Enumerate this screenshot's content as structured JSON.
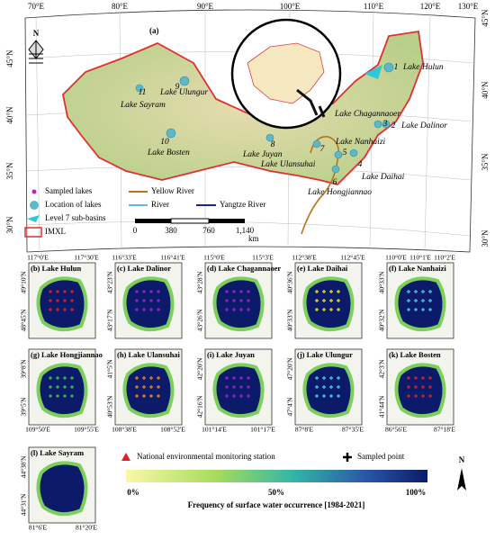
{
  "main_map": {
    "panel_label": "(a)",
    "lon_labels": [
      "70°E",
      "80°E",
      "90°E",
      "100°E",
      "110°E",
      "120°E",
      "130°E"
    ],
    "lat_labels_left": [
      "45°N",
      "40°N",
      "35°N",
      "30°N"
    ],
    "lat_labels_right": [
      "45°N",
      "40°N",
      "35°N",
      "30°N"
    ],
    "lakes": [
      {
        "number": "1",
        "name": "Lake Hulun"
      },
      {
        "number": "2",
        "name": "Lake Dalinor"
      },
      {
        "number": "3",
        "name": "Lake Chagannaoer"
      },
      {
        "number": "4",
        "name": "Lake Daihai"
      },
      {
        "number": "5",
        "name": "Lake Nanhaizi"
      },
      {
        "number": "6",
        "name": "Lake Hongjiannao"
      },
      {
        "number": "7",
        "name": "Lake Ulansuhai"
      },
      {
        "number": "8",
        "name": "Lake Juyan"
      },
      {
        "number": "9",
        "name": "Lake Ulungur"
      },
      {
        "number": "10",
        "name": "Lake Bosten"
      },
      {
        "number": "11",
        "name": "Lake Sayram"
      }
    ],
    "legend": [
      "Sampled lakes",
      "Location of lakes",
      "Level 7 sub-basins",
      "IMXL",
      "Yellow River",
      "River",
      "Yangtze River"
    ],
    "scale": {
      "ticks": [
        "0",
        "380",
        "760",
        "1,140"
      ],
      "unit": "km"
    }
  },
  "panels": [
    {
      "title": "(b) Lake Hulun",
      "x_labels": [
        "117°0'E",
        "117°30'E"
      ],
      "y_labels": [
        "49°10'N",
        "48°45'N"
      ]
    },
    {
      "title": "(c) Lake Dalinor",
      "x_labels": [
        "116°33'E",
        "116°41'E"
      ],
      "y_labels": [
        "43°23'N",
        "43°17'N"
      ]
    },
    {
      "title": "(d) Lake Chagannaoer",
      "x_labels": [
        "115°0'E",
        "115°3'E"
      ],
      "y_labels": [
        "43°28'N",
        "43°26'N"
      ]
    },
    {
      "title": "(e) Lake Daihai",
      "x_labels": [
        "112°38'E",
        "112°45'E"
      ],
      "y_labels": [
        "40°36'N",
        "40°33'N"
      ]
    },
    {
      "title": "(f) Lake Nanhaizi",
      "x_labels": [
        "110°0'E",
        "110°1'E",
        "110°2'E"
      ],
      "y_labels": [
        "40°33'N",
        "40°32'N"
      ]
    },
    {
      "title": "(g) Lake Hongjiannao",
      "x_labels": [
        "109°50'E",
        "109°55'E"
      ],
      "y_labels": [
        "39°8'N",
        "39°5'N"
      ]
    },
    {
      "title": "(h) Lake Ulansuhai",
      "x_labels": [
        "108°38'E",
        "108°52'E"
      ],
      "y_labels": [
        "41°5'N",
        "40°53'N"
      ]
    },
    {
      "title": "(i) Lake Juyan",
      "x_labels": [
        "101°14'E",
        "101°17'E"
      ],
      "y_labels": [
        "42°20'N",
        "42°16'N"
      ]
    },
    {
      "title": "(j) Lake Ulungur",
      "x_labels": [
        "87°8'E",
        "87°35'E"
      ],
      "y_labels": [
        "47°20'N",
        "47°4'N"
      ]
    },
    {
      "title": "(k) Lake Bosten",
      "x_labels": [
        "86°56'E",
        "87°18'E"
      ],
      "y_labels": [
        "42°3'N",
        "41°44'N"
      ]
    },
    {
      "title": "(l) Lake Sayram",
      "x_labels": [
        "81°6'E",
        "81°20'E"
      ],
      "y_labels": [
        "44°38'N",
        "44°31'N"
      ]
    }
  ],
  "bottom_legend": {
    "station": "National environmental monitoring station",
    "sampled": "Sampled point",
    "north": "N",
    "colorbar_ticks": [
      "0%",
      "50%",
      "100%"
    ],
    "colorbar_title": "Frequency of surface water occurrence [1984-2021]"
  }
}
